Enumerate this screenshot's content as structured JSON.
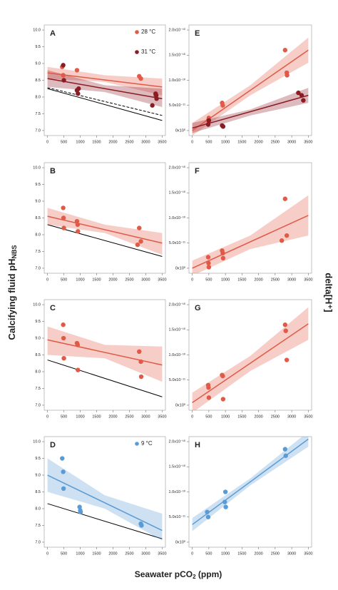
{
  "labels": {
    "y_left": [
      "Calcifying fluid pH",
      "NBS"
    ],
    "y_right": "delta[H⁺]",
    "x": [
      "Seawater pCO",
      "2",
      " (ppm)"
    ]
  },
  "chart_data": [
    {
      "type": "scatter",
      "label": "A",
      "legend": "upper right",
      "xlim": [
        -100,
        3600
      ],
      "xticks": [
        0,
        500,
        1000,
        1500,
        2000,
        2500,
        3000,
        3500
      ],
      "ylim": [
        6.85,
        10.15
      ],
      "yticks": [
        {
          "value": 7,
          "label": "7.0"
        },
        7.5,
        {
          "value": 8,
          "label": "8.0"
        },
        8.5,
        {
          "value": 9,
          "label": "9.0"
        },
        9.5,
        {
          "value": 10,
          "label": "10.0"
        }
      ],
      "series": [
        {
          "name": "28 °C",
          "color": "#e05a47",
          "x": [
            450,
            480,
            900,
            2800,
            2850,
            3300
          ],
          "values": [
            8.9,
            8.65,
            8.8,
            8.62,
            8.55,
            8.05
          ],
          "fit": {
            "x": [
              0,
              3500
            ],
            "values": [
              8.72,
              8.3
            ]
          },
          "band": {
            "x": [
              0,
              1750,
              3500
            ],
            "lower": [
              8.55,
              8.45,
              8.05
            ],
            "upper": [
              8.9,
              8.65,
              8.55
            ]
          }
        },
        {
          "name": "31 °C",
          "color": "#8b1c24",
          "x": [
            480,
            500,
            900,
            930,
            950,
            3200,
            3300,
            3320,
            3330
          ],
          "values": [
            8.95,
            8.5,
            8.2,
            8.1,
            8.25,
            7.75,
            8.1,
            8.05,
            7.95
          ],
          "fit": {
            "x": [
              0,
              3500
            ],
            "values": [
              8.55,
              7.95
            ]
          },
          "band": {
            "x": [
              0,
              1750,
              3500
            ],
            "lower": [
              8.3,
              8.15,
              7.7
            ],
            "upper": [
              8.8,
              8.35,
              8.25
            ]
          }
        }
      ],
      "reference": [
        {
          "style": "solid",
          "x": [
            0,
            3500
          ],
          "values": [
            8.25,
            7.3
          ]
        },
        {
          "style": "dashed",
          "x": [
            0,
            3500
          ],
          "values": [
            8.28,
            7.45
          ]
        }
      ]
    },
    {
      "type": "scatter",
      "label": "B",
      "xlim": [
        -100,
        3600
      ],
      "xticks": [
        0,
        500,
        1000,
        1500,
        2000,
        2500,
        3000,
        3500
      ],
      "ylim": [
        6.85,
        10.15
      ],
      "yticks": [
        {
          "value": 7,
          "label": "7.0"
        },
        7.5,
        {
          "value": 8,
          "label": "8.0"
        },
        8.5,
        {
          "value": 9,
          "label": "9.0"
        },
        9.5,
        {
          "value": 10,
          "label": "10.0"
        }
      ],
      "series": [
        {
          "color": "#e05a47",
          "x": [
            480,
            490,
            500,
            900,
            920,
            930,
            2800,
            2850,
            2750
          ],
          "values": [
            8.8,
            8.5,
            8.2,
            8.4,
            8.3,
            8.1,
            8.2,
            7.8,
            7.7
          ],
          "fit": {
            "x": [
              0,
              3500
            ],
            "values": [
              8.55,
              7.75
            ]
          },
          "band": {
            "x": [
              0,
              1750,
              3500
            ],
            "lower": [
              8.3,
              8.05,
              7.4
            ],
            "upper": [
              8.8,
              8.3,
              8.05
            ]
          }
        }
      ],
      "reference": [
        {
          "style": "solid",
          "x": [
            0,
            3500
          ],
          "values": [
            8.3,
            7.35
          ]
        }
      ]
    },
    {
      "type": "scatter",
      "label": "C",
      "xlim": [
        -100,
        3600
      ],
      "xticks": [
        0,
        500,
        1000,
        1500,
        2000,
        2500,
        3000,
        3500
      ],
      "ylim": [
        6.85,
        10.15
      ],
      "yticks": [
        {
          "value": 7,
          "label": "7.0"
        },
        7.5,
        {
          "value": 8,
          "label": "8.0"
        },
        8.5,
        {
          "value": 9,
          "label": "9.0"
        },
        9.5,
        {
          "value": 10,
          "label": "10.0"
        }
      ],
      "series": [
        {
          "color": "#e05a47",
          "x": [
            480,
            490,
            500,
            900,
            920,
            930,
            2800,
            2850,
            2860
          ],
          "values": [
            9.4,
            9.0,
            8.4,
            8.85,
            8.8,
            8.05,
            8.6,
            8.3,
            7.85
          ],
          "fit": {
            "x": [
              0,
              3500
            ],
            "values": [
              8.95,
              8.2
            ]
          },
          "band": {
            "x": [
              0,
              1750,
              3500
            ],
            "lower": [
              8.5,
              8.4,
              7.7
            ],
            "upper": [
              9.35,
              8.8,
              8.75
            ]
          }
        }
      ],
      "reference": [
        {
          "style": "solid",
          "x": [
            0,
            3500
          ],
          "values": [
            8.35,
            7.25
          ]
        }
      ]
    },
    {
      "type": "scatter",
      "label": "D",
      "legend": "upper right",
      "xlim": [
        -100,
        3600
      ],
      "xticks": [
        0,
        500,
        1000,
        1500,
        2000,
        2500,
        3000,
        3500
      ],
      "ylim": [
        6.85,
        10.15
      ],
      "yticks": [
        {
          "value": 7,
          "label": "7.0"
        },
        7.5,
        {
          "value": 8,
          "label": "8.0"
        },
        8.5,
        {
          "value": 9,
          "label": "9.0"
        },
        9.5,
        {
          "value": 10,
          "label": "10.0"
        }
      ],
      "series": [
        {
          "name": "9 °C",
          "color": "#5b9bd5",
          "x": [
            450,
            480,
            490,
            980,
            1000,
            1010,
            2850,
            2870
          ],
          "values": [
            9.5,
            9.1,
            8.6,
            8.05,
            7.95,
            7.9,
            7.55,
            7.5
          ],
          "fit": {
            "x": [
              0,
              3500
            ],
            "values": [
              9.0,
              7.35
            ]
          },
          "band": {
            "x": [
              0,
              1750,
              3500
            ],
            "lower": [
              8.5,
              8.0,
              7.05
            ],
            "upper": [
              9.5,
              8.4,
              7.85
            ]
          }
        }
      ],
      "reference": [
        {
          "style": "solid",
          "x": [
            0,
            3500
          ],
          "values": [
            8.15,
            7.1
          ]
        }
      ]
    },
    {
      "type": "scatter",
      "label": "E",
      "xlim": [
        -100,
        3600
      ],
      "xticks": [
        0,
        500,
        1000,
        1500,
        2000,
        2500,
        3000,
        3500
      ],
      "ylim": [
        -1e-11,
        2.1e-10
      ],
      "yticks": [
        {
          "value": 0,
          "label": "0x10⁰"
        },
        {
          "value": 5e-11,
          "label": "5.0x10⁻¹¹"
        },
        {
          "value": 1e-10,
          "label": "1.0x10⁻¹⁰"
        },
        {
          "value": 1.5e-10,
          "label": "1.5x10⁻¹⁰"
        },
        {
          "value": 2e-10,
          "label": "2.0x10⁻¹⁰"
        }
      ],
      "series": [
        {
          "color": "#e05a47",
          "x": [
            480,
            500,
            900,
            920,
            2800,
            2850,
            2860
          ],
          "values": [
            2e-11,
            2.5e-11,
            5.5e-11,
            5e-11,
            1.6e-10,
            1.15e-10,
            1.1e-10
          ],
          "fit": {
            "x": [
              0,
              3500
            ],
            "values": [
              0,
              1.6e-10
            ]
          },
          "band": {
            "x": [
              0,
              1750,
              3500
            ],
            "lower": [
              -1e-11,
              7e-11,
              1.35e-10
            ],
            "upper": [
              1.5e-11,
              9e-11,
              1.85e-10
            ]
          }
        },
        {
          "color": "#8b1c24",
          "x": [
            480,
            500,
            900,
            930,
            3200,
            3300,
            3350
          ],
          "values": [
            1.2e-11,
            2e-11,
            1e-11,
            8e-12,
            7.5e-11,
            7e-11,
            6e-11
          ],
          "fit": {
            "x": [
              0,
              3500
            ],
            "values": [
              5e-12,
              7e-11
            ]
          },
          "band": {
            "x": [
              0,
              1750,
              3500
            ],
            "lower": [
              -5e-12,
              3e-11,
              5.5e-11
            ],
            "upper": [
              1.5e-11,
              4.2e-11,
              8.5e-11
            ]
          }
        }
      ]
    },
    {
      "type": "scatter",
      "label": "F",
      "xlim": [
        -100,
        3600
      ],
      "xticks": [
        0,
        500,
        1000,
        1500,
        2000,
        2500,
        3000,
        3500
      ],
      "ylim": [
        -1e-11,
        2.1e-10
      ],
      "yticks": [
        {
          "value": 0,
          "label": "0x10⁰"
        },
        {
          "value": 5e-11,
          "label": "5.0x10⁻¹¹"
        },
        {
          "value": 1e-10,
          "label": "1.0x10⁻¹⁰"
        },
        {
          "value": 1.5e-10,
          "label": "1.5x10⁻¹⁰"
        },
        {
          "value": 2e-10,
          "label": "2.0x10⁻¹⁰"
        }
      ],
      "series": [
        {
          "color": "#e05a47",
          "x": [
            480,
            490,
            500,
            900,
            920,
            930,
            2700,
            2800,
            2850
          ],
          "values": [
            2.2e-11,
            1e-11,
            2e-12,
            3.5e-11,
            3e-11,
            2e-11,
            5.5e-11,
            1.38e-10,
            6.5e-11
          ],
          "fit": {
            "x": [
              0,
              3500
            ],
            "values": [
              0,
              1.05e-10
            ]
          },
          "band": {
            "x": [
              0,
              1750,
              3500
            ],
            "lower": [
              -1.5e-11,
              3.8e-11,
              6.5e-11
            ],
            "upper": [
              1.5e-11,
              6.5e-11,
              1.45e-10
            ]
          }
        }
      ]
    },
    {
      "type": "scatter",
      "label": "G",
      "xlim": [
        -100,
        3600
      ],
      "xticks": [
        0,
        500,
        1000,
        1500,
        2000,
        2500,
        3000,
        3500
      ],
      "ylim": [
        -1e-11,
        2.1e-10
      ],
      "yticks": [
        {
          "value": 0,
          "label": "0x10⁰"
        },
        {
          "value": 5e-11,
          "label": "5.0x10⁻¹¹"
        },
        {
          "value": 1e-10,
          "label": "1.0x10⁻¹⁰"
        },
        {
          "value": 1.5e-10,
          "label": "1.5x10⁻¹⁰"
        },
        {
          "value": 2e-10,
          "label": "2.0x10⁻¹⁰"
        }
      ],
      "series": [
        {
          "color": "#e05a47",
          "x": [
            480,
            490,
            500,
            900,
            920,
            930,
            2800,
            2820,
            2850
          ],
          "values": [
            4e-11,
            3.5e-11,
            1.5e-11,
            6e-11,
            5.8e-11,
            1.2e-11,
            1.6e-10,
            1.48e-10,
            9e-11
          ],
          "fit": {
            "x": [
              0,
              3500
            ],
            "values": [
              5e-12,
              1.62e-10
            ]
          },
          "band": {
            "x": [
              0,
              1750,
              3500
            ],
            "lower": [
              -1.5e-11,
              6.8e-11,
              1.3e-10
            ],
            "upper": [
              2.5e-11,
              9.8e-11,
              1.95e-10
            ]
          }
        }
      ]
    },
    {
      "type": "scatter",
      "label": "H",
      "xlim": [
        -100,
        3600
      ],
      "xticks": [
        0,
        500,
        1000,
        1500,
        2000,
        2500,
        3000,
        3500
      ],
      "ylim": [
        -1e-11,
        2.1e-10
      ],
      "yticks": [
        {
          "value": 0,
          "label": "0x10⁰"
        },
        {
          "value": 5e-11,
          "label": "5.0x10⁻¹¹"
        },
        {
          "value": 1e-10,
          "label": "1.0x10⁻¹⁰"
        },
        {
          "value": 1.5e-10,
          "label": "1.5x10⁻¹⁰"
        },
        {
          "value": 2e-10,
          "label": "2.0x10⁻¹⁰"
        }
      ],
      "series": [
        {
          "color": "#5b9bd5",
          "x": [
            450,
            480,
            980,
            1000,
            1010,
            2800,
            2820
          ],
          "values": [
            6e-11,
            5e-11,
            8e-11,
            1e-10,
            7e-11,
            1.85e-10,
            1.72e-10
          ],
          "fit": {
            "x": [
              0,
              3500
            ],
            "values": [
              3.5e-11,
              2.05e-10
            ]
          },
          "band": {
            "x": [
              0,
              1750,
              3500
            ],
            "lower": [
              2.2e-11,
              1.13e-10,
              1.9e-10
            ],
            "upper": [
              4.8e-11,
              1.27e-10,
              2.2e-10
            ]
          }
        }
      ]
    }
  ]
}
